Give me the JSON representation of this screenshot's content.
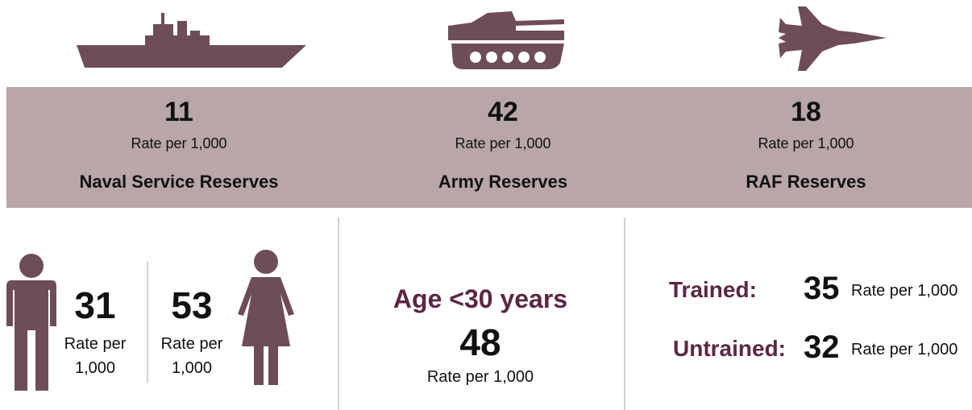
{
  "services": [
    {
      "value": 11,
      "rate_label": "Rate per 1,000",
      "name": "Naval Service Reserves"
    },
    {
      "value": 42,
      "rate_label": "Rate per 1,000",
      "name": "Army Reserves"
    },
    {
      "value": 18,
      "rate_label": "Rate per 1,000",
      "name": "RAF Reserves"
    }
  ],
  "gender": [
    {
      "value": 31,
      "rate_label": "Rate per 1,000"
    },
    {
      "value": 53,
      "rate_label": "Rate per 1,000"
    }
  ],
  "age": {
    "label": "Age <30 years",
    "value": 48,
    "rate_label": "Rate per 1,000"
  },
  "training": [
    {
      "label": "Trained:",
      "value": 35,
      "rate_label": "Rate per 1,000"
    },
    {
      "label": "Untrained:",
      "value": 32,
      "rate_label": "Rate per 1,000"
    }
  ]
}
